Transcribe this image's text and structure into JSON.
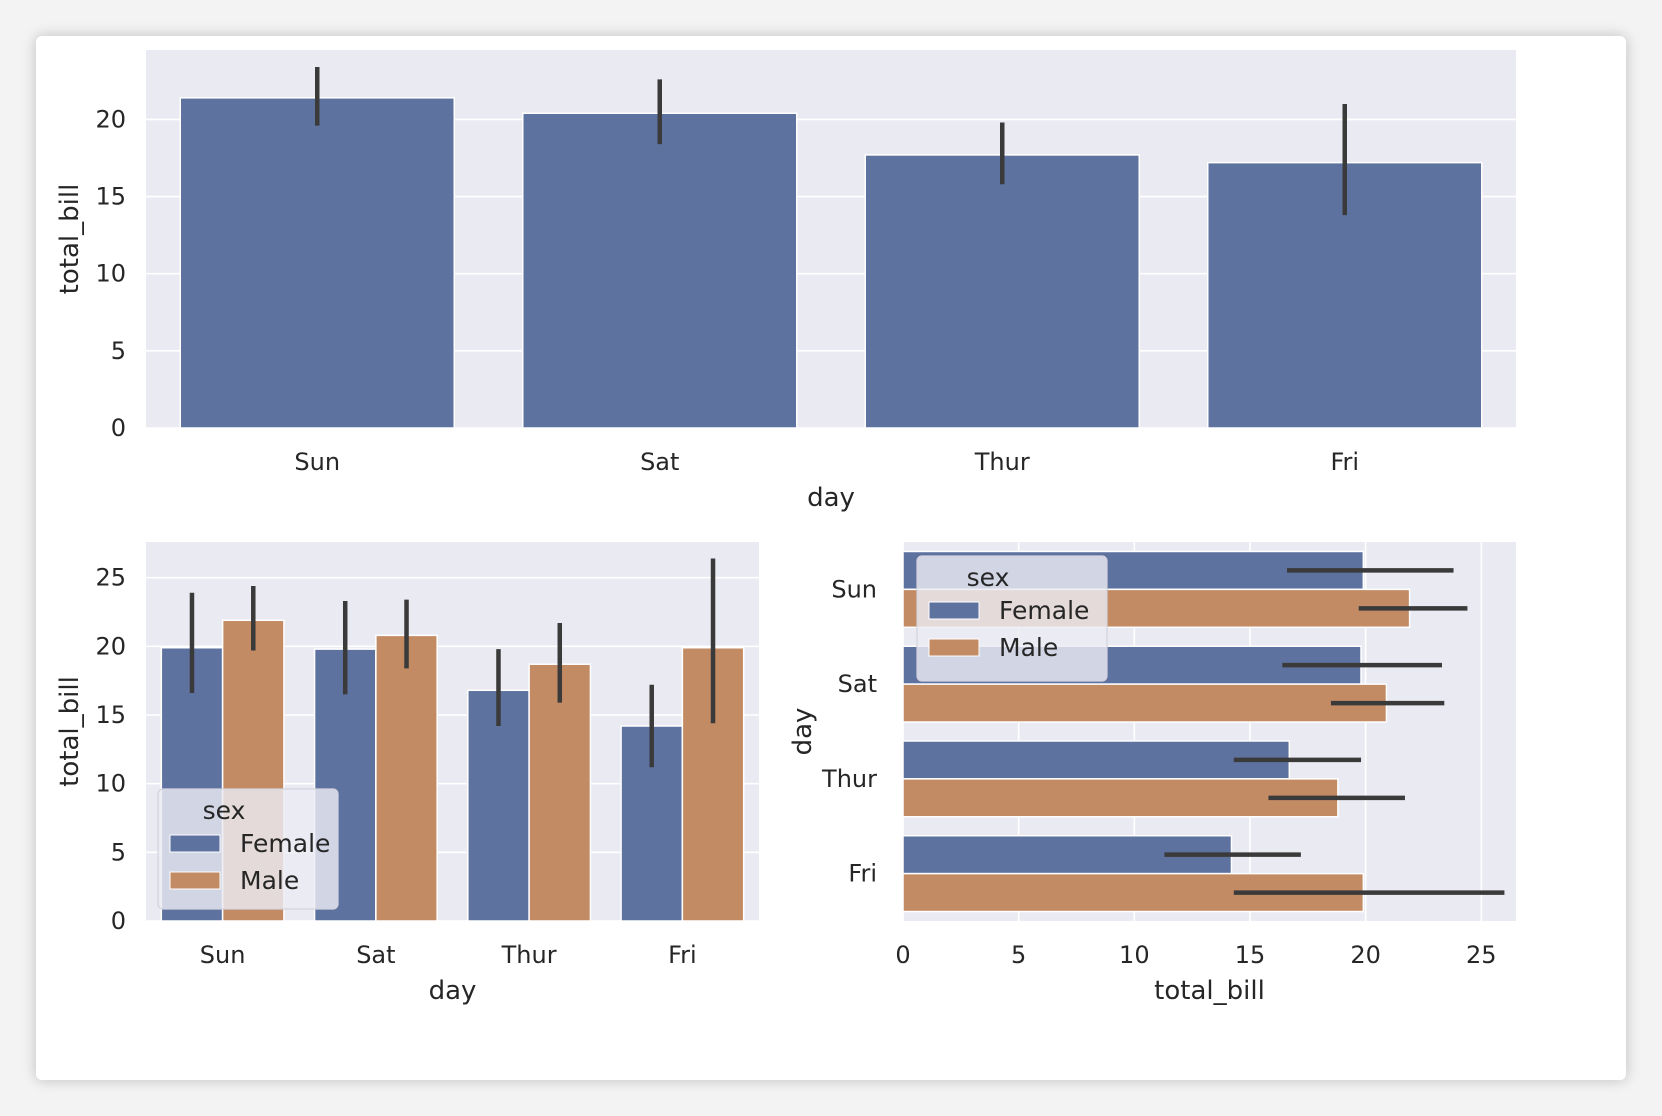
{
  "colors": {
    "background": "#eaeaf2",
    "grid": "#ffffff",
    "female": "#5e72a0",
    "male": "#c38b63",
    "single": "#5e72a0",
    "errorbar": "#3a3a3a",
    "text": "#262626"
  },
  "chart_data": [
    {
      "id": "top",
      "type": "bar",
      "orientation": "vertical",
      "xlabel": "day",
      "ylabel": "total_bill",
      "categories": [
        "Sun",
        "Sat",
        "Thur",
        "Fri"
      ],
      "values": [
        21.4,
        20.4,
        17.7,
        17.2
      ],
      "ci": [
        [
          19.6,
          23.4
        ],
        [
          18.4,
          22.6
        ],
        [
          15.8,
          19.8
        ],
        [
          13.8,
          21.0
        ]
      ],
      "ylim": [
        0,
        24.5
      ],
      "yticks": [
        0,
        5,
        10,
        15,
        20
      ],
      "grid": true
    },
    {
      "id": "bottom-left",
      "type": "bar",
      "orientation": "vertical",
      "xlabel": "day",
      "ylabel": "total_bill",
      "categories": [
        "Sun",
        "Sat",
        "Thur",
        "Fri"
      ],
      "legend": {
        "title": "sex",
        "position": "lower-left"
      },
      "series": [
        {
          "name": "Female",
          "values": [
            19.9,
            19.8,
            16.8,
            14.2
          ],
          "ci": [
            [
              16.6,
              23.9
            ],
            [
              16.5,
              23.3
            ],
            [
              14.2,
              19.8
            ],
            [
              11.2,
              17.2
            ]
          ]
        },
        {
          "name": "Male",
          "values": [
            21.9,
            20.8,
            18.7,
            19.9
          ],
          "ci": [
            [
              19.7,
              24.4
            ],
            [
              18.4,
              23.4
            ],
            [
              15.9,
              21.7
            ],
            [
              14.4,
              26.4
            ]
          ]
        }
      ],
      "ylim": [
        0,
        27.6
      ],
      "yticks": [
        0,
        5,
        10,
        15,
        20,
        25
      ],
      "grid": true
    },
    {
      "id": "bottom-right",
      "type": "bar",
      "orientation": "horizontal",
      "xlabel": "total_bill",
      "ylabel": "day",
      "categories": [
        "Sun",
        "Sat",
        "Thur",
        "Fri"
      ],
      "legend": {
        "title": "sex",
        "position": "upper-left"
      },
      "series": [
        {
          "name": "Female",
          "values": [
            19.9,
            19.8,
            16.7,
            14.2
          ],
          "ci": [
            [
              16.6,
              23.8
            ],
            [
              16.4,
              23.3
            ],
            [
              14.3,
              19.8
            ],
            [
              11.3,
              17.2
            ]
          ]
        },
        {
          "name": "Male",
          "values": [
            21.9,
            20.9,
            18.8,
            19.9
          ],
          "ci": [
            [
              19.7,
              24.4
            ],
            [
              18.5,
              23.4
            ],
            [
              15.8,
              21.7
            ],
            [
              14.3,
              26.0
            ]
          ]
        }
      ],
      "xlim": [
        0,
        26.5
      ],
      "xticks": [
        0,
        5,
        10,
        15,
        20,
        25
      ],
      "grid": true
    }
  ]
}
